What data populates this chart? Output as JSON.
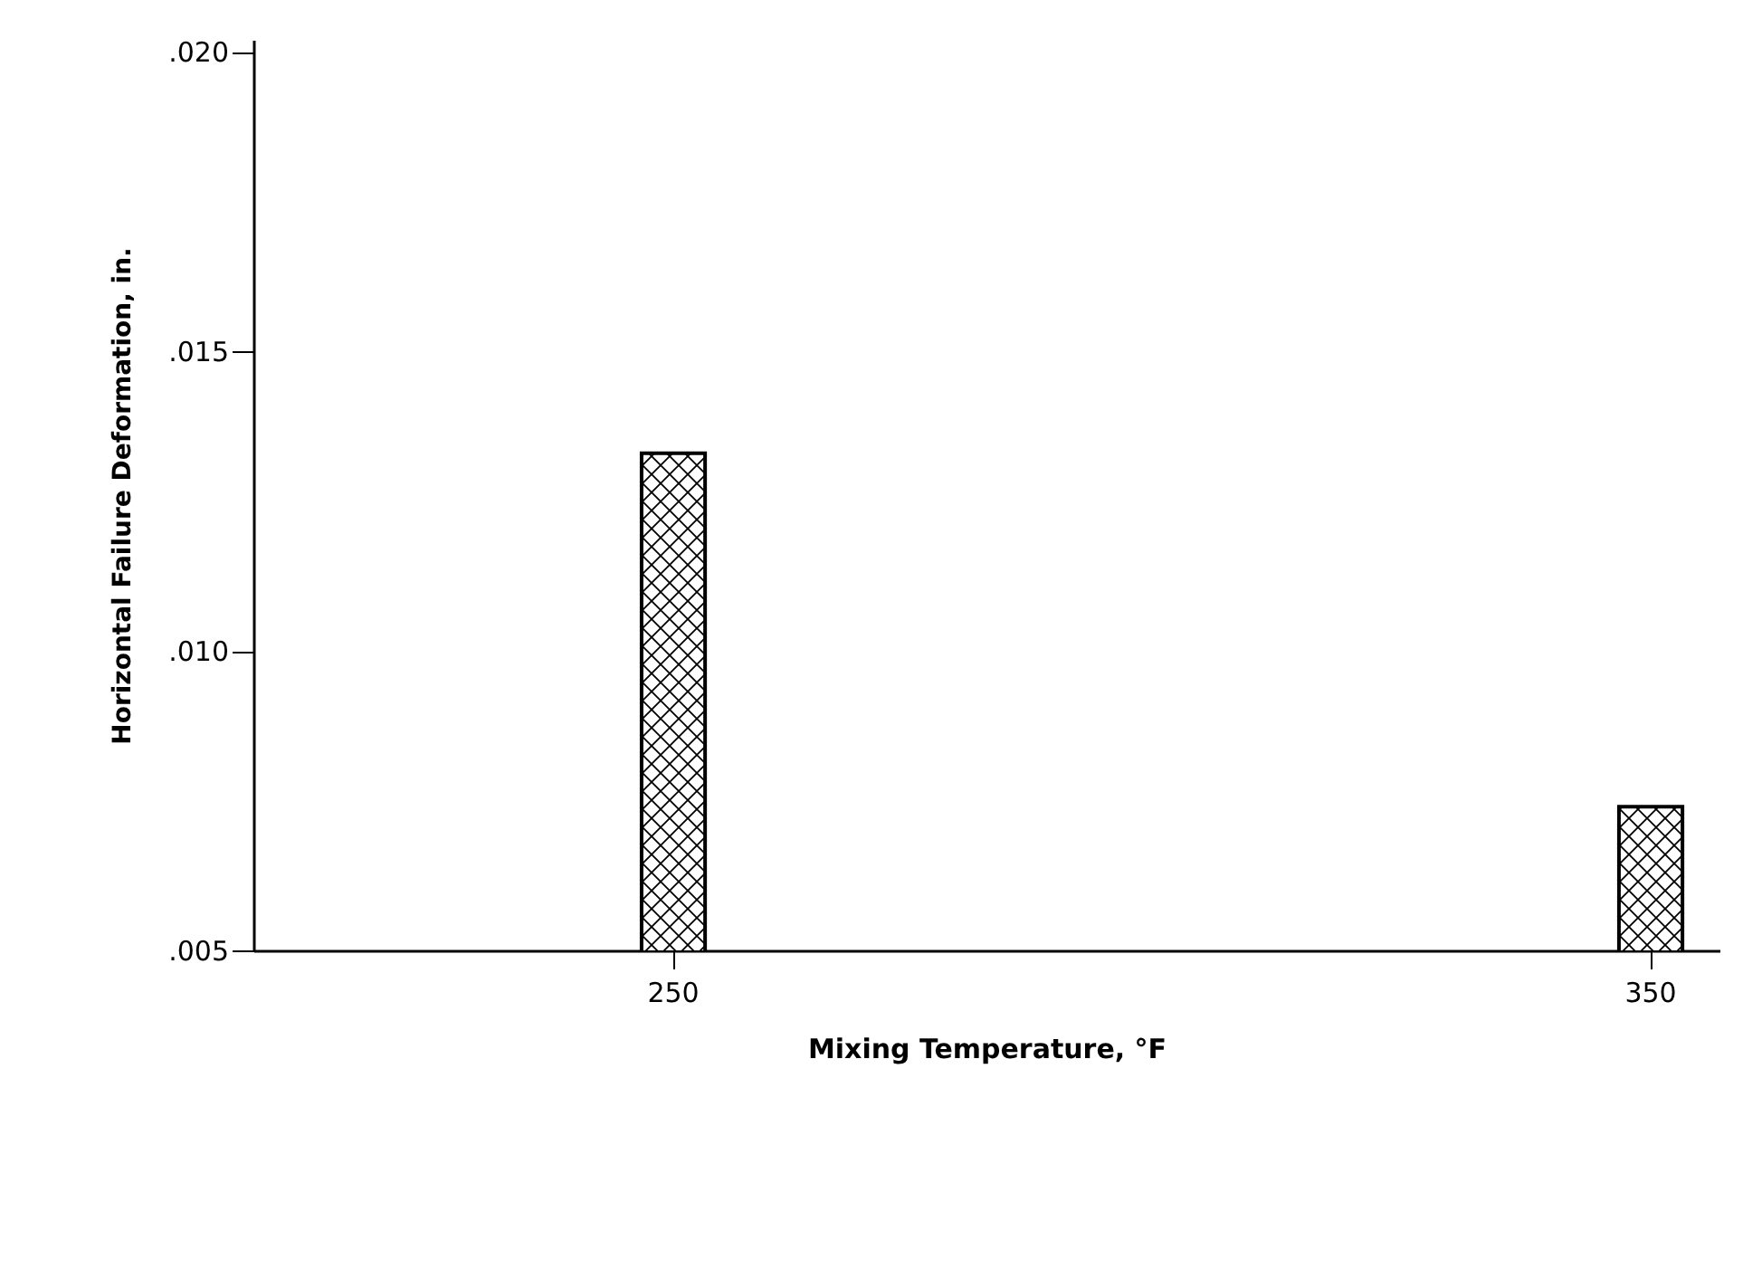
{
  "chart_data": {
    "type": "bar",
    "xlabel": "Mixing Temperature, °F",
    "ylabel": "Horizontal Failure Deformation, in.",
    "categories": [
      "250",
      "350"
    ],
    "values": [
      0.0133,
      0.0074
    ],
    "color": "#000000",
    "ylim": [
      0.005,
      0.0202
    ],
    "yticks": [
      {
        "value": 0.005,
        "label": ".005"
      },
      {
        "value": 0.01,
        "label": ".010"
      },
      {
        "value": 0.015,
        "label": ".015"
      },
      {
        "value": 0.02,
        "label": ".020"
      }
    ],
    "grid": false
  }
}
